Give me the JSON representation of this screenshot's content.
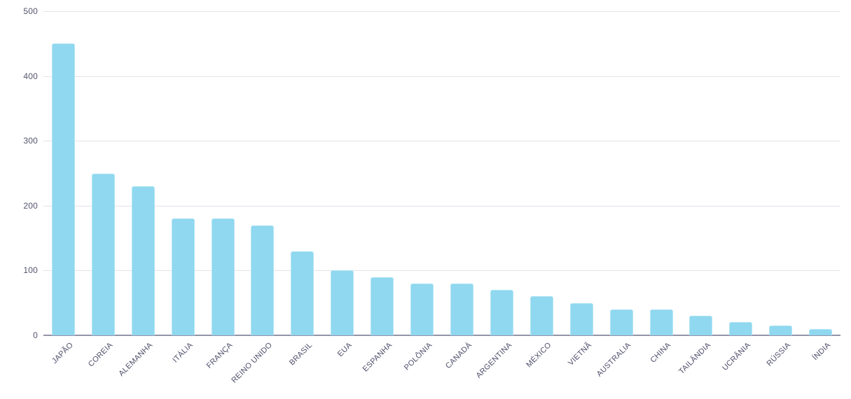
{
  "chart_data": {
    "type": "bar",
    "title": "",
    "xlabel": "",
    "ylabel": "",
    "categories": [
      "JAPÃO",
      "COREIA",
      "ALEMANHA",
      "ITÁLIA",
      "FRANÇA",
      "REINO UNIDO",
      "BRASIL",
      "EUA",
      "ESPANHA",
      "POLÔNIA",
      "CANADÁ",
      "ARGENTINA",
      "MÉXICO",
      "VIETNÃ",
      "AUSTRALIA",
      "CHINA",
      "TAILÂNDIA",
      "UCRÂNIA",
      "RÚSSIA",
      "ÍNDIA"
    ],
    "values": [
      450,
      250,
      230,
      180,
      180,
      170,
      130,
      100,
      90,
      80,
      80,
      70,
      60,
      50,
      40,
      40,
      30,
      20,
      15,
      10
    ],
    "ylim": [
      0,
      500
    ],
    "yticks": [
      0,
      100,
      200,
      300,
      400,
      500
    ],
    "grid": true,
    "legend": false,
    "bar_color": "#8fd8ef",
    "bar_border_color": "#b5e5f6",
    "grid_color": "#e3e3ea",
    "axis_line_color": "#9494a8",
    "y_tick_label_color": "#54546e",
    "x_tick_label_color": "#4e4e6b"
  }
}
